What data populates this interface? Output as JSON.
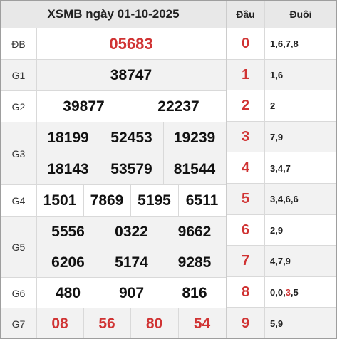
{
  "title": "XSMB ngày 01-10-2025",
  "prizes": {
    "db": {
      "label": "ĐB",
      "numbers": [
        "05683"
      ]
    },
    "g1": {
      "label": "G1",
      "numbers": [
        "38747"
      ]
    },
    "g2": {
      "label": "G2",
      "numbers": [
        "39877",
        "22237"
      ]
    },
    "g3": {
      "label": "G3",
      "numbers": [
        "18199",
        "52453",
        "19239",
        "18143",
        "53579",
        "81544"
      ]
    },
    "g4": {
      "label": "G4",
      "numbers": [
        "1501",
        "7869",
        "5195",
        "6511"
      ]
    },
    "g5": {
      "label": "G5",
      "numbers": [
        "5556",
        "0322",
        "9662",
        "6206",
        "5174",
        "9285"
      ]
    },
    "g6": {
      "label": "G6",
      "numbers": [
        "480",
        "907",
        "816"
      ]
    },
    "g7": {
      "label": "G7",
      "numbers": [
        "08",
        "56",
        "80",
        "54"
      ]
    }
  },
  "tail_table": {
    "head_label": "Đầu",
    "tail_label": "Đuôi",
    "rows": [
      {
        "head": "0",
        "tails": "1,6,7,8"
      },
      {
        "head": "1",
        "tails": "1,6"
      },
      {
        "head": "2",
        "tails": "2"
      },
      {
        "head": "3",
        "tails": "7,9"
      },
      {
        "head": "4",
        "tails": "3,4,7"
      },
      {
        "head": "5",
        "tails": "3,4,6,6"
      },
      {
        "head": "6",
        "tails": "2,9"
      },
      {
        "head": "7",
        "tails": "4,7,9"
      },
      {
        "head": "8",
        "tails_pre": "0,0,",
        "tails_hl": "3",
        "tails_post": ",5"
      },
      {
        "head": "9",
        "tails": "5,9"
      }
    ]
  },
  "colors": {
    "accent_red": "#d03333",
    "header_bg": "#e8e8e8",
    "alt_row_bg": "#f2f2f2"
  }
}
